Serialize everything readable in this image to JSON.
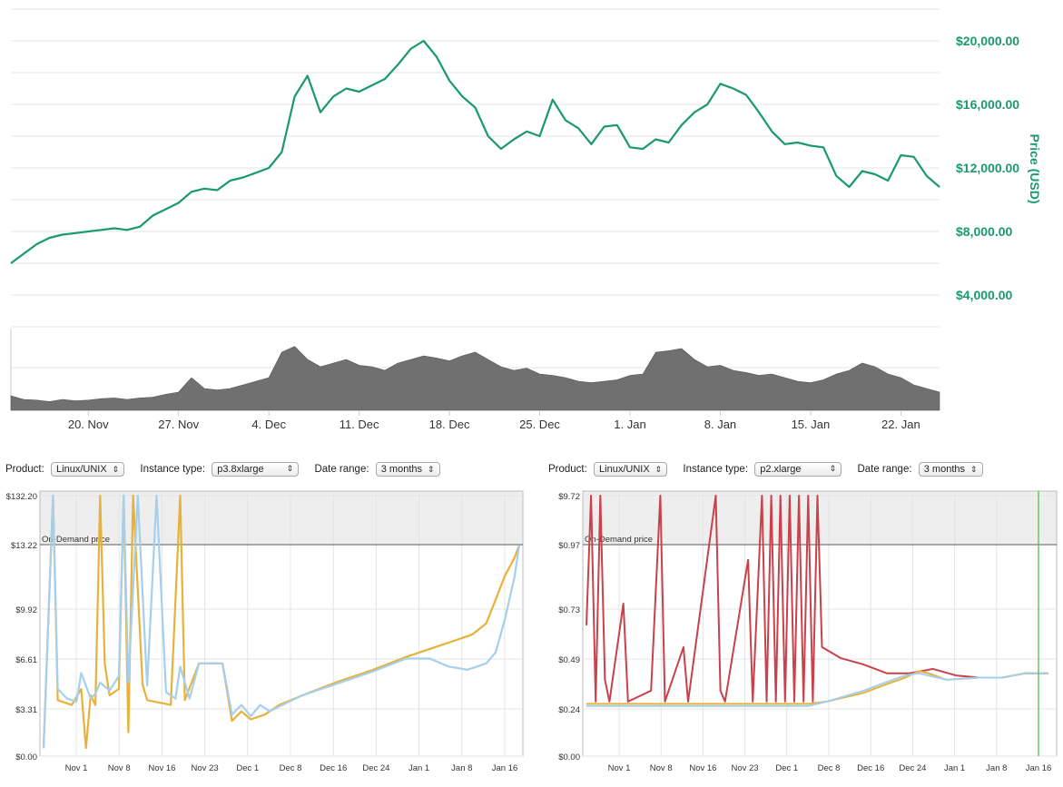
{
  "chart_data": [
    {
      "type": "line",
      "ylabel": "Price (USD)",
      "ylim": [
        2000,
        22000
      ],
      "yticks": [
        "$4,000.00",
        "$8,000.00",
        "$12,000.00",
        "$16,000.00",
        "$20,000.00"
      ],
      "ytick_values": [
        4000,
        8000,
        12000,
        16000,
        20000
      ],
      "xticks": [
        "20. Nov",
        "27. Nov",
        "4. Dec",
        "11. Dec",
        "18. Dec",
        "25. Dec",
        "1. Jan",
        "8. Jan",
        "15. Jan",
        "22. Jan"
      ],
      "x_range_days": [
        0,
        72
      ],
      "xtick_days": [
        6,
        13,
        20,
        27,
        34,
        41,
        48,
        55,
        62,
        69
      ],
      "series": [
        {
          "color": "#1a9a6c",
          "x_days": [
            0,
            1,
            2,
            3,
            4,
            5,
            6,
            7,
            8,
            9,
            10,
            11,
            12,
            13,
            14,
            15,
            16,
            17,
            18,
            19,
            20,
            21,
            22,
            23,
            24,
            25,
            26,
            27,
            28,
            29,
            30,
            31,
            32,
            33,
            34,
            35,
            36,
            37,
            38,
            39,
            40,
            41,
            42,
            43,
            44,
            45,
            46,
            47,
            48,
            49,
            50,
            51,
            52,
            53,
            54,
            55,
            56,
            57,
            58,
            59,
            60,
            61,
            62,
            63,
            64,
            65,
            66,
            67,
            68,
            69,
            70,
            71,
            72
          ],
          "values": [
            6000,
            6600,
            7200,
            7600,
            7800,
            7900,
            8000,
            8100,
            8200,
            8100,
            8300,
            9000,
            9400,
            9800,
            10500,
            10700,
            10600,
            11200,
            11400,
            11700,
            12000,
            13000,
            16500,
            17800,
            15500,
            16500,
            17000,
            16800,
            17200,
            17600,
            18500,
            19500,
            20000,
            19000,
            17500,
            16500,
            15800,
            14000,
            13200,
            13800,
            14300,
            14000,
            16300,
            15000,
            14500,
            13500,
            14600,
            14700,
            13300,
            13200,
            13800,
            13600,
            14700,
            15500,
            16000,
            17300,
            17000,
            16600,
            15500,
            14300,
            13500,
            13600,
            13400,
            13300,
            11500,
            10800,
            11800,
            11600,
            11200,
            12800,
            12700,
            11500,
            10800
          ]
        }
      ],
      "volume": {
        "color": "#707070",
        "values": [
          20,
          15,
          14,
          12,
          15,
          13,
          14,
          16,
          17,
          15,
          17,
          18,
          22,
          25,
          45,
          30,
          28,
          30,
          35,
          40,
          45,
          80,
          88,
          70,
          60,
          65,
          70,
          62,
          60,
          55,
          65,
          70,
          75,
          72,
          68,
          75,
          80,
          70,
          60,
          55,
          58,
          50,
          48,
          45,
          40,
          38,
          40,
          42,
          48,
          50,
          80,
          82,
          85,
          70,
          60,
          62,
          55,
          52,
          48,
          50,
          45,
          40,
          38,
          42,
          50,
          55,
          65,
          60,
          50,
          45,
          35,
          30,
          25
        ]
      }
    },
    {
      "type": "line",
      "controls": {
        "product_label": "Product:",
        "product_value": "Linux/UNIX",
        "instance_label": "Instance type:",
        "instance_value": "p3.8xlarge",
        "range_label": "Date range:",
        "range_value": "3 months"
      },
      "yticks": [
        "$0.00",
        "$3.31",
        "$6.61",
        "$9.92",
        "$13.22",
        "$132.20"
      ],
      "xticks": [
        "Nov 1",
        "Nov 8",
        "Nov 16",
        "Nov 23",
        "Dec 1",
        "Dec 8",
        "Dec 16",
        "Dec 24",
        "Jan 1",
        "Jan 8",
        "Jan 16"
      ],
      "annotation": "On-Demand price",
      "series": [
        {
          "color": "#e8b23a",
          "values": [
            [
              0,
              0.5
            ],
            [
              2,
              13.5
            ],
            [
              3,
              3.5
            ],
            [
              6,
              3.2
            ],
            [
              8,
              4.2
            ],
            [
              9,
              0.5
            ],
            [
              10,
              3.8
            ],
            [
              11,
              3.2
            ],
            [
              12,
              13.5
            ],
            [
              13,
              5.8
            ],
            [
              14,
              3.8
            ],
            [
              16,
              4.2
            ],
            [
              17,
              13.5
            ],
            [
              18,
              1.5
            ],
            [
              19,
              13.5
            ],
            [
              21,
              4.5
            ],
            [
              22,
              3.5
            ],
            [
              27,
              3.2
            ],
            [
              29,
              13.5
            ],
            [
              30,
              3.5
            ],
            [
              33,
              5.8
            ],
            [
              38,
              5.8
            ],
            [
              40,
              2.2
            ],
            [
              42,
              2.8
            ],
            [
              44,
              2.3
            ],
            [
              47,
              2.6
            ],
            [
              50,
              3.2
            ],
            [
              55,
              3.8
            ],
            [
              62,
              4.6
            ],
            [
              70,
              5.4
            ],
            [
              77,
              6.2
            ],
            [
              84,
              6.9
            ],
            [
              91,
              7.6
            ],
            [
              94,
              8.3
            ],
            [
              96,
              9.8
            ],
            [
              98,
              11.3
            ],
            [
              100,
              12.4
            ],
            [
              101,
              13.2
            ]
          ]
        },
        {
          "color": "#a5cfee",
          "values": [
            [
              0,
              0.5
            ],
            [
              2,
              13.5
            ],
            [
              3,
              4.2
            ],
            [
              5,
              3.6
            ],
            [
              7,
              3.4
            ],
            [
              8,
              5.2
            ],
            [
              10,
              3.6
            ],
            [
              11,
              3.9
            ],
            [
              12,
              4.6
            ],
            [
              14,
              4.1
            ],
            [
              16,
              5.0
            ],
            [
              17,
              13.5
            ],
            [
              18,
              4.6
            ],
            [
              20,
              13.5
            ],
            [
              22,
              4.4
            ],
            [
              24,
              13.5
            ],
            [
              26,
              4.0
            ],
            [
              28,
              3.6
            ],
            [
              29,
              5.6
            ],
            [
              31,
              3.6
            ],
            [
              33,
              5.8
            ],
            [
              38,
              5.8
            ],
            [
              40,
              2.6
            ],
            [
              42,
              3.2
            ],
            [
              44,
              2.5
            ],
            [
              46,
              3.2
            ],
            [
              48,
              2.8
            ],
            [
              50,
              3.1
            ],
            [
              55,
              3.8
            ],
            [
              62,
              4.5
            ],
            [
              70,
              5.3
            ],
            [
              77,
              6.1
            ],
            [
              82,
              6.1
            ],
            [
              86,
              5.6
            ],
            [
              90,
              5.4
            ],
            [
              94,
              5.8
            ],
            [
              96,
              6.5
            ],
            [
              98,
              8.6
            ],
            [
              100,
              11.2
            ],
            [
              101,
              13.2
            ]
          ]
        }
      ]
    },
    {
      "type": "line",
      "controls": {
        "product_label": "Product:",
        "product_value": "Linux/UNIX",
        "instance_label": "Instance type:",
        "instance_value": "p2.xlarge",
        "range_label": "Date range:",
        "range_value": "3 months"
      },
      "yticks": [
        "$0.00",
        "$0.24",
        "$0.49",
        "$0.73",
        "$0.97",
        "$9.72"
      ],
      "xticks": [
        "Nov 1",
        "Nov 8",
        "Nov 16",
        "Nov 23",
        "Dec 1",
        "Dec 8",
        "Dec 16",
        "Dec 24",
        "Jan 1",
        "Jan 8",
        "Jan 16"
      ],
      "annotation": "On-Demand price",
      "series": [
        {
          "color": "#c9414a",
          "values": [
            [
              0,
              0.6
            ],
            [
              1,
              1.2
            ],
            [
              2,
              0.25
            ],
            [
              3,
              1.2
            ],
            [
              4,
              0.35
            ],
            [
              5,
              0.25
            ],
            [
              8,
              0.7
            ],
            [
              9,
              0.25
            ],
            [
              14,
              0.3
            ],
            [
              16,
              1.2
            ],
            [
              17,
              0.25
            ],
            [
              21,
              0.5
            ],
            [
              22,
              0.25
            ],
            [
              28,
              1.2
            ],
            [
              29,
              0.3
            ],
            [
              30,
              0.25
            ],
            [
              35,
              0.9
            ],
            [
              36,
              0.25
            ],
            [
              38,
              1.2
            ],
            [
              39,
              0.25
            ],
            [
              40,
              1.2
            ],
            [
              41,
              0.25
            ],
            [
              42,
              1.2
            ],
            [
              43,
              0.25
            ],
            [
              44,
              1.2
            ],
            [
              45,
              0.25
            ],
            [
              46,
              1.2
            ],
            [
              47,
              0.25
            ],
            [
              48,
              1.2
            ],
            [
              49,
              0.25
            ],
            [
              50,
              1.2
            ],
            [
              51,
              0.5
            ],
            [
              55,
              0.45
            ],
            [
              60,
              0.42
            ],
            [
              65,
              0.38
            ],
            [
              70,
              0.38
            ],
            [
              75,
              0.4
            ],
            [
              80,
              0.37
            ],
            [
              85,
              0.36
            ],
            [
              90,
              0.36
            ],
            [
              95,
              0.38
            ],
            [
              100,
              0.38
            ]
          ]
        },
        {
          "color": "#e8b23a",
          "values": [
            [
              0,
              0.24
            ],
            [
              48,
              0.24
            ],
            [
              52,
              0.25
            ],
            [
              60,
              0.29
            ],
            [
              65,
              0.33
            ],
            [
              69,
              0.36
            ],
            [
              72,
              0.39
            ],
            [
              74,
              0.38
            ],
            [
              78,
              0.35
            ],
            [
              85,
              0.36
            ],
            [
              90,
              0.36
            ],
            [
              95,
              0.38
            ],
            [
              100,
              0.38
            ]
          ]
        },
        {
          "color": "#a5cfee",
          "values": [
            [
              0,
              0.23
            ],
            [
              48,
              0.23
            ],
            [
              52,
              0.25
            ],
            [
              60,
              0.3
            ],
            [
              65,
              0.34
            ],
            [
              69,
              0.37
            ],
            [
              72,
              0.38
            ],
            [
              74,
              0.37
            ],
            [
              78,
              0.35
            ],
            [
              85,
              0.36
            ],
            [
              90,
              0.36
            ],
            [
              95,
              0.38
            ],
            [
              100,
              0.38
            ]
          ]
        }
      ]
    }
  ]
}
